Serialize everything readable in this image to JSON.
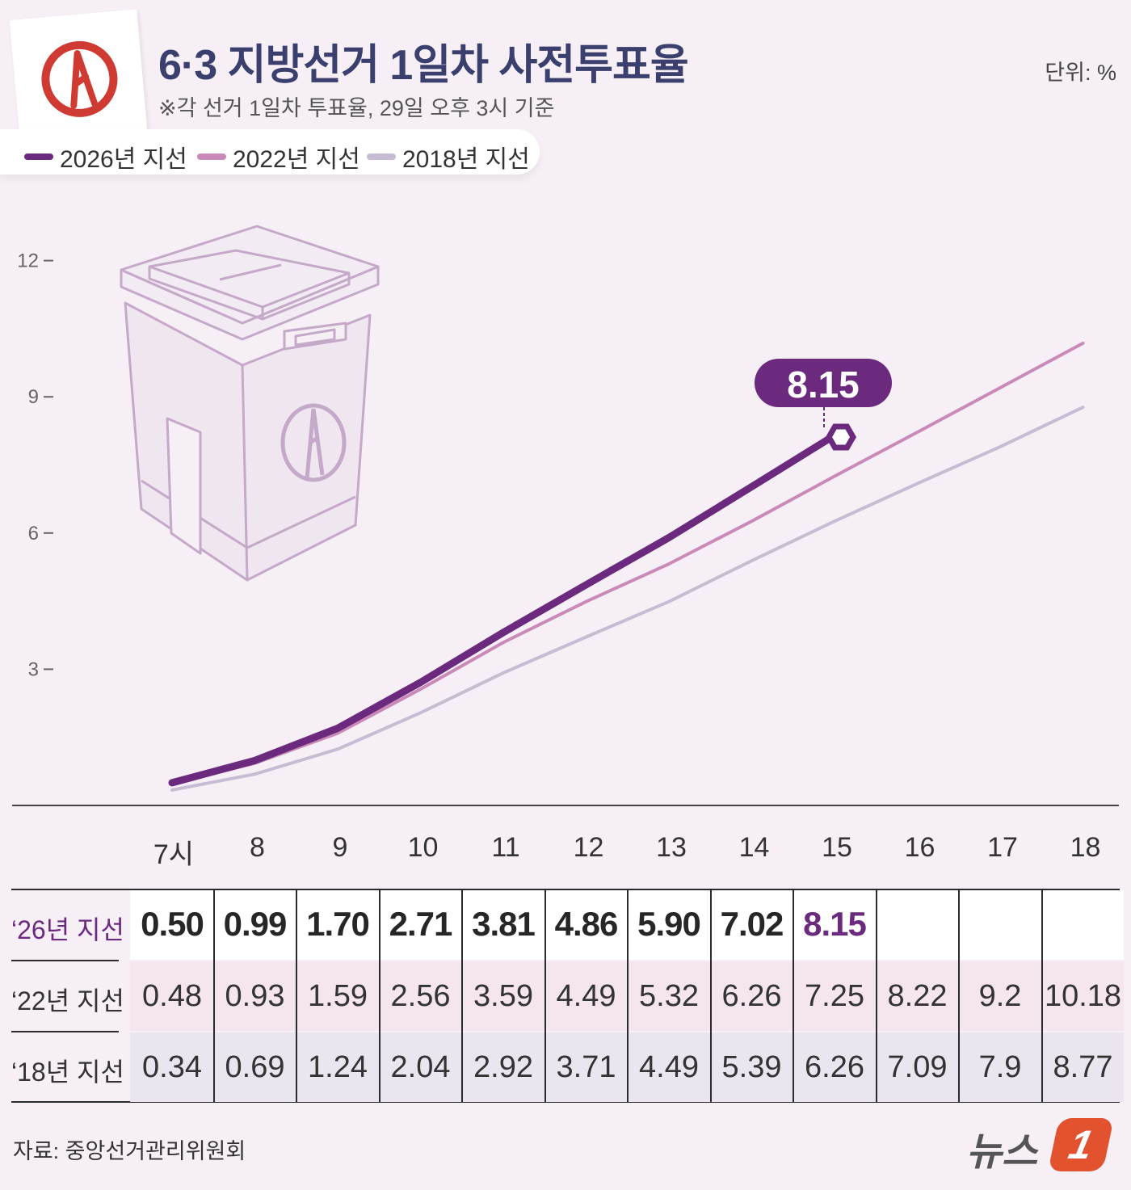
{
  "header": {
    "title": "6·3 지방선거 1일차 사전투표율",
    "subtitle": "※각 선거 1일차 투표율, 29일 오후 3시 기준",
    "unit": "단위: %"
  },
  "legend": [
    {
      "label": "2026년 지선",
      "color": "#6b2a7e"
    },
    {
      "label": "2022년 지선",
      "color": "#c98ab8"
    },
    {
      "label": "2018년 지선",
      "color": "#c7bdd2"
    }
  ],
  "icons": [
    "ballot-mark-icon",
    "ballot-box-icon"
  ],
  "chart_data": {
    "type": "line",
    "x": [
      "7시",
      "8",
      "9",
      "10",
      "11",
      "12",
      "13",
      "14",
      "15",
      "16",
      "17",
      "18"
    ],
    "y_ticks": [
      3,
      6,
      9,
      12
    ],
    "ylim": [
      0,
      12
    ],
    "series": [
      {
        "name": "2026년 지선",
        "color": "#6b2a7e",
        "values": [
          0.5,
          0.99,
          1.7,
          2.71,
          3.81,
          4.86,
          5.9,
          7.02,
          8.15,
          null,
          null,
          null
        ]
      },
      {
        "name": "2022년 지선",
        "color": "#c98ab8",
        "values": [
          0.48,
          0.93,
          1.59,
          2.56,
          3.59,
          4.49,
          5.32,
          6.26,
          7.25,
          8.22,
          9.2,
          10.18
        ]
      },
      {
        "name": "2018년 지선",
        "color": "#c7bdd2",
        "values": [
          0.34,
          0.69,
          1.24,
          2.04,
          2.92,
          3.71,
          4.49,
          5.39,
          6.26,
          7.09,
          7.9,
          8.77
        ]
      }
    ],
    "annotation": {
      "label": "8.15",
      "series": "2026년 지선",
      "x": "15"
    }
  },
  "table": {
    "rows": [
      {
        "label": "‘26년 지선",
        "cells": [
          "0.50",
          "0.99",
          "1.70",
          "2.71",
          "3.81",
          "4.86",
          "5.90",
          "7.02",
          "8.15",
          "",
          "",
          ""
        ]
      },
      {
        "label": "‘22년 지선",
        "cells": [
          "0.48",
          "0.93",
          "1.59",
          "2.56",
          "3.59",
          "4.49",
          "5.32",
          "6.26",
          "7.25",
          "8.22",
          "9.2",
          "10.18"
        ]
      },
      {
        "label": "‘18년 지선",
        "cells": [
          "0.34",
          "0.69",
          "1.24",
          "2.04",
          "2.92",
          "3.71",
          "4.49",
          "5.39",
          "6.26",
          "7.09",
          "7.9",
          "8.77"
        ]
      }
    ]
  },
  "footer": {
    "source": "자료: 중앙선거관리위원회",
    "brand": "뉴스",
    "brand_badge": "1"
  }
}
